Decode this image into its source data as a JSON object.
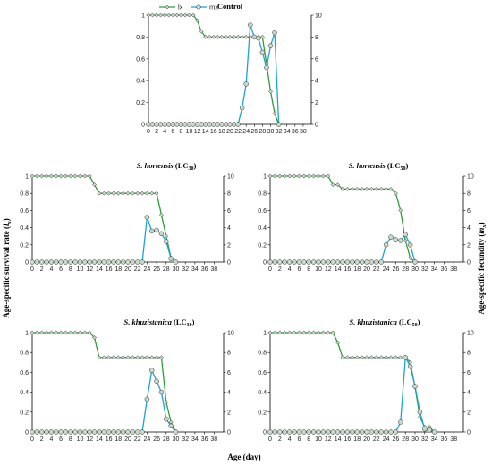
{
  "figure": {
    "xlabel": "Age (day)",
    "ylabel_left": "Age-specific survival rate (lx)",
    "ylabel_right": "Age-specific fecundity (mx)",
    "legend": {
      "lx": "lx",
      "mx": "mx"
    },
    "colors": {
      "lx": "#2e9e3a",
      "mx": "#1aa3d9",
      "marker_fill": "#c8d8c8",
      "axis": "#000000"
    }
  },
  "chart_data": [
    {
      "type": "line",
      "panel": "control",
      "title": "Control",
      "xlim": [
        0,
        40
      ],
      "xticks": [
        0,
        2,
        4,
        6,
        8,
        10,
        12,
        14,
        16,
        18,
        20,
        22,
        24,
        26,
        28,
        30,
        32,
        34,
        36,
        38
      ],
      "ylim_left": [
        0,
        1
      ],
      "yticks_left": [
        "0",
        "0.2",
        "0.4",
        "0.6",
        "0.8",
        "1"
      ],
      "ylim_right": [
        0,
        10
      ],
      "yticks_right": [
        "0",
        "2",
        "4",
        "6",
        "8",
        "10"
      ],
      "legend_position": "top",
      "series": [
        {
          "name": "lx",
          "axis": "left",
          "x": [
            0,
            1,
            2,
            3,
            4,
            5,
            6,
            7,
            8,
            9,
            10,
            11,
            12,
            13,
            14,
            15,
            16,
            17,
            18,
            19,
            20,
            21,
            22,
            23,
            24,
            25,
            26,
            27,
            28,
            29,
            30,
            31,
            32
          ],
          "y": [
            1,
            1,
            1,
            1,
            1,
            1,
            1,
            1,
            1,
            1,
            1,
            1,
            0.95,
            0.85,
            0.8,
            0.8,
            0.8,
            0.8,
            0.8,
            0.8,
            0.8,
            0.8,
            0.8,
            0.8,
            0.8,
            0.8,
            0.8,
            0.8,
            0.8,
            0.55,
            0.3,
            0.1,
            0.0
          ]
        },
        {
          "name": "mx",
          "axis": "right",
          "x": [
            0,
            1,
            2,
            3,
            4,
            5,
            6,
            7,
            8,
            9,
            10,
            11,
            12,
            13,
            14,
            15,
            16,
            17,
            18,
            19,
            20,
            21,
            22,
            23,
            24,
            25,
            26,
            27,
            28,
            29,
            30,
            31,
            32
          ],
          "y": [
            0,
            0,
            0,
            0,
            0,
            0,
            0,
            0,
            0,
            0,
            0,
            0,
            0,
            0,
            0,
            0,
            0,
            0,
            0,
            0,
            0,
            0,
            0,
            1.5,
            3.7,
            9.1,
            8.0,
            7.9,
            6.6,
            5.2,
            7.2,
            8.4,
            0
          ]
        }
      ]
    },
    {
      "type": "line",
      "panel": "hortensis-lc30",
      "title_species": "S. hortensis",
      "title_dose": "(LC30)",
      "xlim": [
        0,
        40
      ],
      "xticks": [
        0,
        2,
        4,
        6,
        8,
        10,
        12,
        14,
        16,
        18,
        20,
        22,
        24,
        26,
        28,
        30,
        32,
        34,
        36,
        38
      ],
      "ylim_left": [
        0,
        1
      ],
      "yticks_left": [
        "0",
        "0.2",
        "0.4",
        "0.6",
        "0.8",
        "1"
      ],
      "ylim_right": [
        0,
        10
      ],
      "yticks_right": [
        "0",
        "2",
        "4",
        "6",
        "8",
        "10"
      ],
      "series": [
        {
          "name": "lx",
          "axis": "left",
          "x": [
            0,
            1,
            2,
            3,
            4,
            5,
            6,
            7,
            8,
            9,
            10,
            11,
            12,
            13,
            14,
            15,
            16,
            17,
            18,
            19,
            20,
            21,
            22,
            23,
            24,
            25,
            26,
            27,
            28,
            29,
            30
          ],
          "y": [
            1,
            1,
            1,
            1,
            1,
            1,
            1,
            1,
            1,
            1,
            1,
            1,
            1,
            0.9,
            0.8,
            0.8,
            0.8,
            0.8,
            0.8,
            0.8,
            0.8,
            0.8,
            0.8,
            0.8,
            0.8,
            0.8,
            0.8,
            0.55,
            0.3,
            0.05,
            0
          ]
        },
        {
          "name": "mx",
          "axis": "right",
          "x": [
            0,
            1,
            2,
            3,
            4,
            5,
            6,
            7,
            8,
            9,
            10,
            11,
            12,
            13,
            14,
            15,
            16,
            17,
            18,
            19,
            20,
            21,
            22,
            23,
            24,
            25,
            26,
            27,
            28,
            29,
            30
          ],
          "y": [
            0,
            0,
            0,
            0,
            0,
            0,
            0,
            0,
            0,
            0,
            0,
            0,
            0,
            0,
            0,
            0,
            0,
            0,
            0,
            0,
            0,
            0,
            0,
            0,
            5.2,
            3.6,
            3.7,
            3.3,
            2.4,
            0.4,
            0
          ]
        }
      ]
    },
    {
      "type": "line",
      "panel": "hortensis-lc50",
      "title_species": "S. hortensis",
      "title_dose": "(LC50)",
      "xlim": [
        0,
        40
      ],
      "xticks": [
        0,
        2,
        4,
        6,
        8,
        10,
        12,
        14,
        16,
        18,
        20,
        22,
        24,
        26,
        28,
        30,
        32,
        34,
        36,
        38
      ],
      "ylim_left": [
        0,
        1
      ],
      "yticks_left": [
        "0",
        "0.2",
        "0.4",
        "0.6",
        "0.8",
        "1"
      ],
      "ylim_right": [
        0,
        10
      ],
      "yticks_right": [
        "0",
        "2",
        "4",
        "6",
        "8",
        "10"
      ],
      "series": [
        {
          "name": "lx",
          "axis": "left",
          "x": [
            0,
            1,
            2,
            3,
            4,
            5,
            6,
            7,
            8,
            9,
            10,
            11,
            12,
            13,
            14,
            15,
            16,
            17,
            18,
            19,
            20,
            21,
            22,
            23,
            24,
            25,
            26,
            27,
            28,
            29,
            30
          ],
          "y": [
            1,
            1,
            1,
            1,
            1,
            1,
            1,
            1,
            1,
            1,
            1,
            1,
            1,
            0.9,
            0.9,
            0.85,
            0.85,
            0.85,
            0.85,
            0.85,
            0.85,
            0.85,
            0.85,
            0.85,
            0.85,
            0.85,
            0.8,
            0.6,
            0.25,
            0.05,
            0
          ]
        },
        {
          "name": "mx",
          "axis": "right",
          "x": [
            0,
            1,
            2,
            3,
            4,
            5,
            6,
            7,
            8,
            9,
            10,
            11,
            12,
            13,
            14,
            15,
            16,
            17,
            18,
            19,
            20,
            21,
            22,
            23,
            24,
            25,
            26,
            27,
            28,
            29,
            30
          ],
          "y": [
            0,
            0,
            0,
            0,
            0,
            0,
            0,
            0,
            0,
            0,
            0,
            0,
            0,
            0,
            0,
            0,
            0,
            0,
            0,
            0,
            0,
            0,
            0,
            0,
            2.0,
            2.9,
            2.6,
            2.5,
            3.2,
            2.0,
            0
          ]
        }
      ]
    },
    {
      "type": "line",
      "panel": "khuzistanica-lc30",
      "title_species": "S. khuzistanica",
      "title_dose": "(LC30)",
      "xlim": [
        0,
        40
      ],
      "xticks": [
        0,
        2,
        4,
        6,
        8,
        10,
        12,
        14,
        16,
        18,
        20,
        22,
        24,
        26,
        28,
        30,
        32,
        34,
        36,
        38
      ],
      "ylim_left": [
        0,
        1
      ],
      "yticks_left": [
        "0",
        "0.2",
        "0.4",
        "0.6",
        "0.8",
        "1"
      ],
      "ylim_right": [
        0,
        10
      ],
      "yticks_right": [
        "0",
        "2",
        "4",
        "6",
        "8",
        "10"
      ],
      "series": [
        {
          "name": "lx",
          "axis": "left",
          "x": [
            0,
            1,
            2,
            3,
            4,
            5,
            6,
            7,
            8,
            9,
            10,
            11,
            12,
            13,
            14,
            15,
            16,
            17,
            18,
            19,
            20,
            21,
            22,
            23,
            24,
            25,
            26,
            27,
            28,
            29,
            30
          ],
          "y": [
            1,
            1,
            1,
            1,
            1,
            1,
            1,
            1,
            1,
            1,
            1,
            1,
            1,
            0.95,
            0.75,
            0.75,
            0.75,
            0.75,
            0.75,
            0.75,
            0.75,
            0.75,
            0.75,
            0.75,
            0.75,
            0.75,
            0.75,
            0.75,
            0.3,
            0.1,
            0
          ]
        },
        {
          "name": "mx",
          "axis": "right",
          "x": [
            0,
            1,
            2,
            3,
            4,
            5,
            6,
            7,
            8,
            9,
            10,
            11,
            12,
            13,
            14,
            15,
            16,
            17,
            18,
            19,
            20,
            21,
            22,
            23,
            24,
            25,
            26,
            27,
            28,
            29,
            30
          ],
          "y": [
            0,
            0,
            0,
            0,
            0,
            0,
            0,
            0,
            0,
            0,
            0,
            0,
            0,
            0,
            0,
            0,
            0,
            0,
            0,
            0,
            0,
            0,
            0,
            0,
            3.3,
            6.2,
            5.1,
            4.0,
            1.3,
            0.6,
            0
          ]
        }
      ]
    },
    {
      "type": "line",
      "panel": "khuzistanica-lc50",
      "title_species": "S. khuzistanica",
      "title_dose": "(LC50)",
      "xlim": [
        0,
        40
      ],
      "xticks": [
        0,
        2,
        4,
        6,
        8,
        10,
        12,
        14,
        16,
        18,
        20,
        22,
        24,
        26,
        28,
        30,
        32,
        34,
        36,
        38
      ],
      "ylim_left": [
        0,
        1
      ],
      "yticks_left": [
        "0",
        "0.2",
        "0.4",
        "0.6",
        "0.8",
        "1"
      ],
      "ylim_right": [
        0,
        10
      ],
      "yticks_right": [
        "0",
        "2",
        "4",
        "6",
        "8",
        "10"
      ],
      "series": [
        {
          "name": "lx",
          "axis": "left",
          "x": [
            0,
            1,
            2,
            3,
            4,
            5,
            6,
            7,
            8,
            9,
            10,
            11,
            12,
            13,
            14,
            15,
            16,
            17,
            18,
            19,
            20,
            21,
            22,
            23,
            24,
            25,
            26,
            27,
            28,
            29,
            30,
            31,
            32,
            33,
            34
          ],
          "y": [
            1,
            1,
            1,
            1,
            1,
            1,
            1,
            1,
            1,
            1,
            1,
            1,
            1,
            1,
            0.9,
            0.75,
            0.75,
            0.75,
            0.75,
            0.75,
            0.75,
            0.75,
            0.75,
            0.75,
            0.75,
            0.75,
            0.75,
            0.75,
            0.75,
            0.7,
            0.45,
            0.15,
            0.05,
            0.05,
            0
          ]
        },
        {
          "name": "mx",
          "axis": "right",
          "x": [
            0,
            1,
            2,
            3,
            4,
            5,
            6,
            7,
            8,
            9,
            10,
            11,
            12,
            13,
            14,
            15,
            16,
            17,
            18,
            19,
            20,
            21,
            22,
            23,
            24,
            25,
            26,
            27,
            28,
            29,
            30,
            31,
            32,
            33,
            34
          ],
          "y": [
            0,
            0,
            0,
            0,
            0,
            0,
            0,
            0,
            0,
            0,
            0,
            0,
            0,
            0,
            0,
            0,
            0,
            0,
            0,
            0,
            0,
            0,
            0,
            0,
            0,
            0,
            0,
            1.0,
            7.5,
            6.6,
            4.6,
            2.0,
            0.3,
            0.2,
            0
          ]
        }
      ]
    }
  ]
}
